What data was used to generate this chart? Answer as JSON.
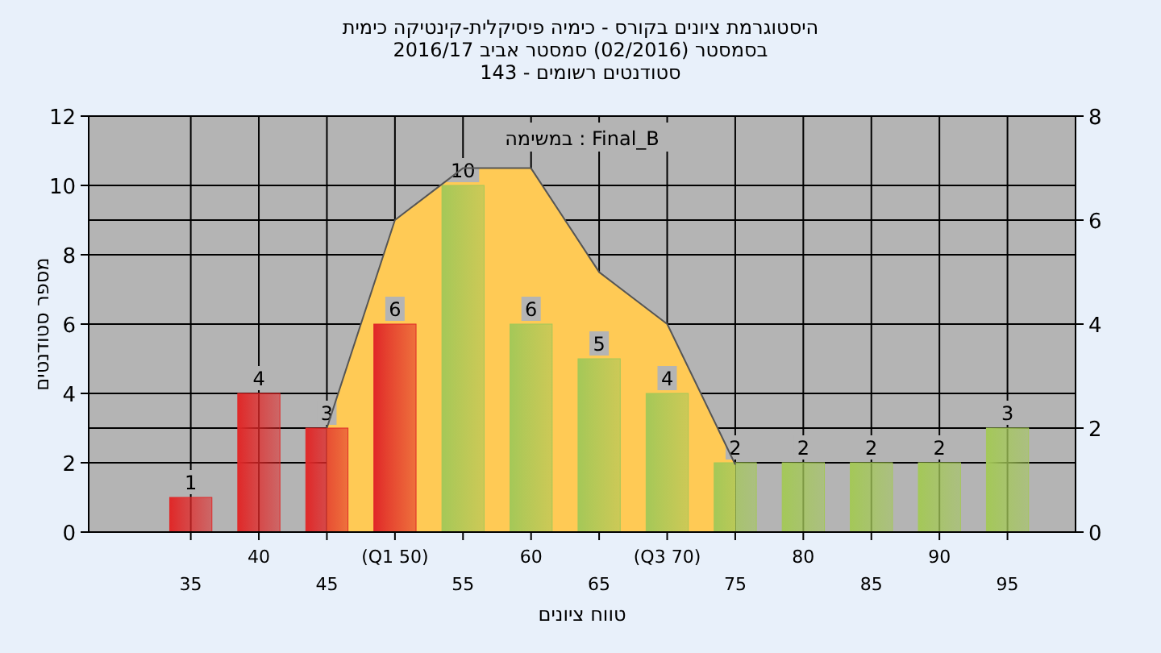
{
  "chart_data": {
    "type": "bar",
    "title": "היסטוגרמת ציונים בקורס - כימיה פיסיקלית-קינטיקה כימית",
    "subtitle": "בסמסטר  (02/2016)  סמסטר אביב 2016/17",
    "xlabel": "טווח ציונים",
    "ylabel": "מספר סטודנטים",
    "annotations": [
      "סטודנטים רשומים - 143",
      "במשימה : Final_B"
    ],
    "categories": [
      "35",
      "40",
      "45",
      "(Q1 50)",
      "55",
      "60",
      "65",
      "(Q3 70)",
      "75",
      "80",
      "85",
      "90",
      "95"
    ],
    "series": [
      {
        "type": "area",
        "axis": "y2",
        "color": "#ffca55",
        "values": [
          null,
          null,
          2,
          6,
          7,
          7,
          5,
          4,
          1.3,
          null,
          null,
          null,
          null
        ]
      },
      {
        "value_labels": [
          "1",
          "4",
          "3",
          "6",
          "10",
          "6",
          "5",
          "4",
          "2",
          "2",
          "2",
          "2",
          "3"
        ],
        "colors": [
          "#e02828",
          "#e02828",
          "#e02828",
          "#e02828",
          "#a4c858",
          "#a4c858",
          "#a4c858",
          "#a4c858",
          "#a4c858",
          "#a4c858",
          "#a4c858",
          "#a4c858",
          "#a4c858"
        ],
        "values": [
          1,
          4,
          3,
          6,
          10,
          6,
          5,
          4,
          2,
          2,
          2,
          2,
          3
        ]
      }
    ],
    "ylim": [
      0,
      12
    ],
    "yticks": [
      0,
      2,
      4,
      6,
      8,
      10,
      12
    ],
    "y2lim": [
      0,
      8
    ],
    "y2ticks": [
      0,
      2,
      4,
      6,
      8
    ],
    "grid": true,
    "legend": false
  }
}
